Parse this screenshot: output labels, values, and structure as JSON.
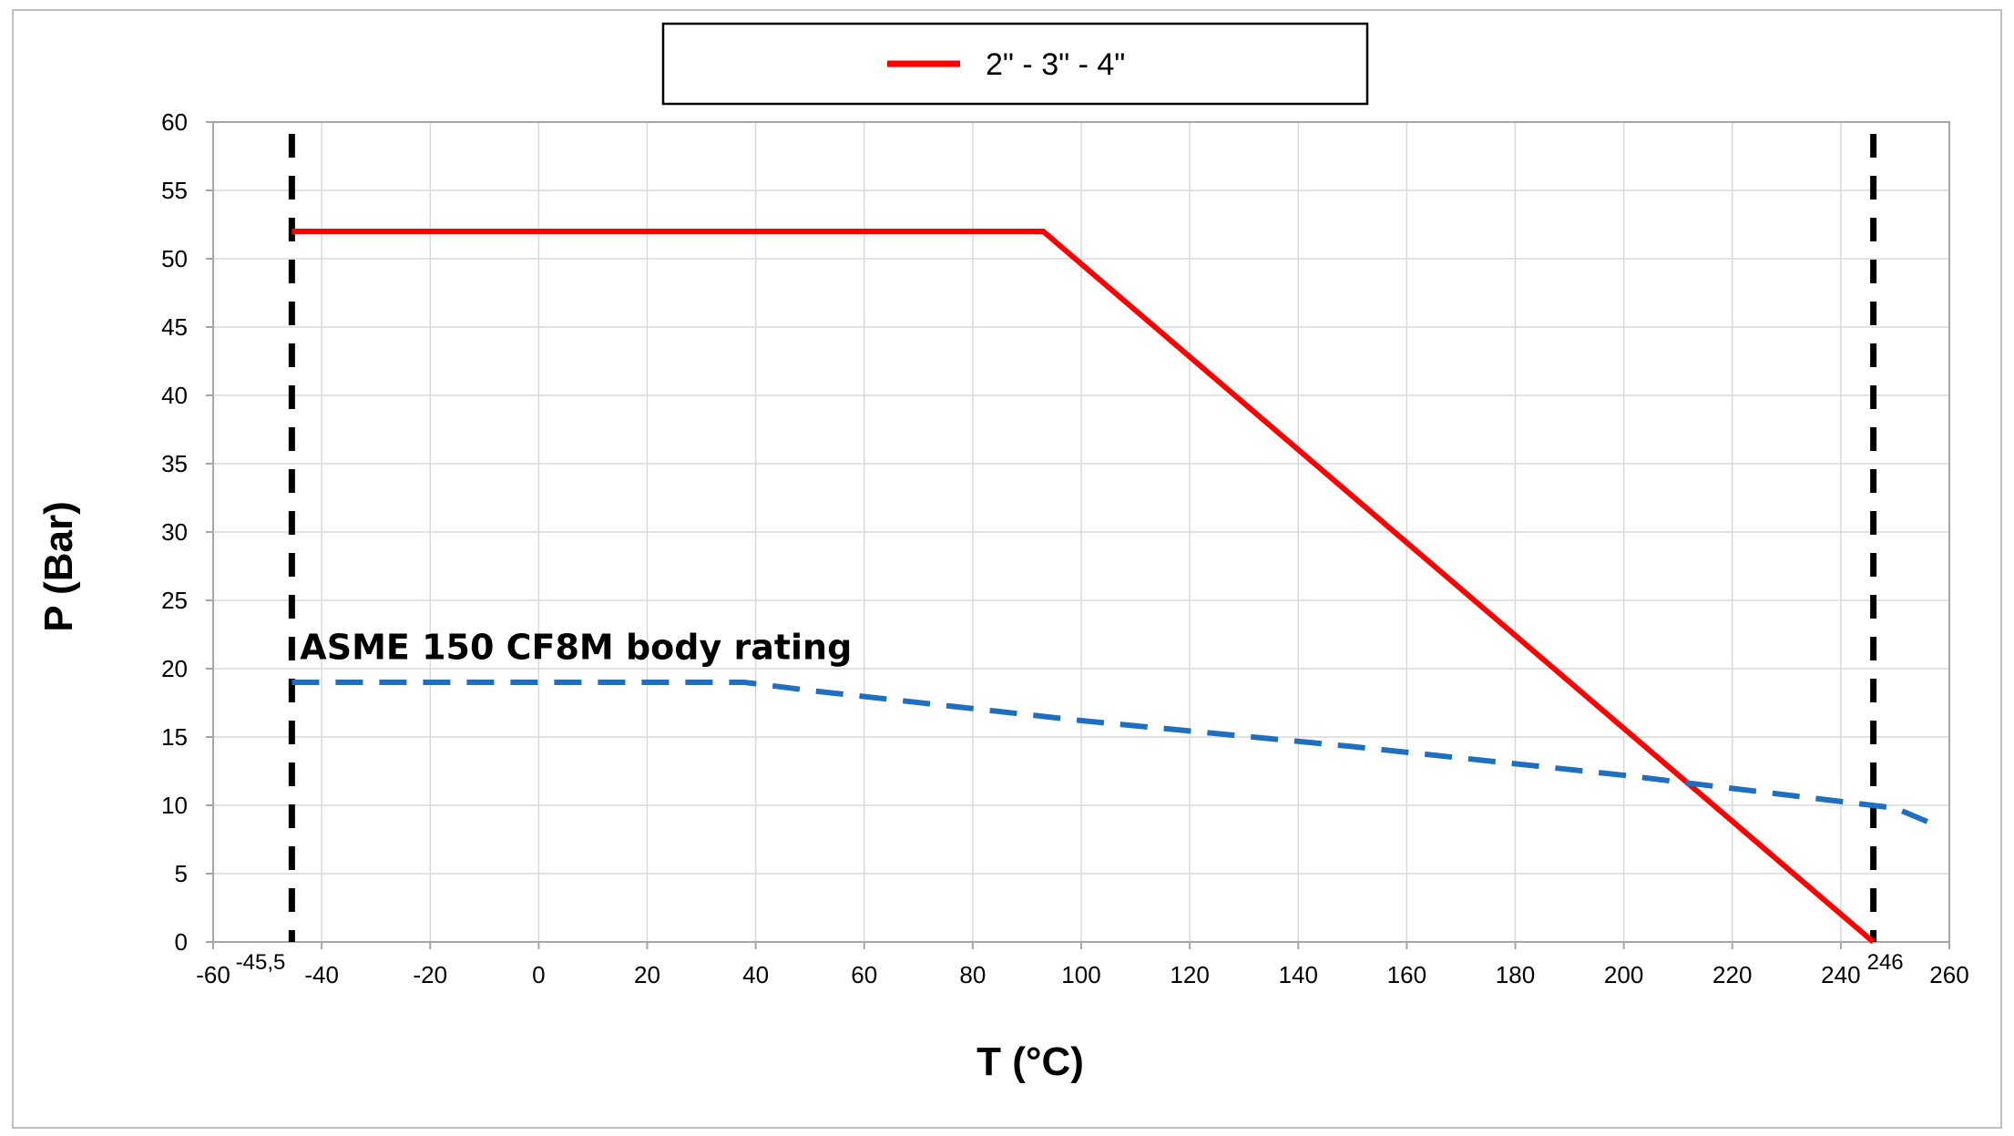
{
  "chart_data": {
    "type": "line",
    "title": "",
    "xlabel": "T (°C)",
    "ylabel": "P (Bar)",
    "xlim": [
      -60,
      260
    ],
    "ylim": [
      0,
      60
    ],
    "x_ticks": [
      -60,
      -40,
      -20,
      0,
      20,
      40,
      60,
      80,
      100,
      120,
      140,
      160,
      180,
      200,
      220,
      240,
      260
    ],
    "y_ticks": [
      0,
      5,
      10,
      15,
      20,
      25,
      30,
      35,
      40,
      45,
      50,
      55,
      60
    ],
    "grid": true,
    "legend_position": "top-center",
    "series": [
      {
        "name": "2\" - 3\" - 4\"",
        "color": "#ff0000",
        "style": "solid",
        "x": [
          -45.5,
          93,
          246
        ],
        "y": [
          52,
          52,
          0
        ]
      },
      {
        "name": "",
        "color": "#1f6fc0",
        "style": "dashed",
        "x": [
          -45.5,
          38,
          50,
          100,
          150,
          200,
          250,
          256
        ],
        "y": [
          19,
          19,
          18.4,
          16.2,
          14.3,
          12.2,
          9.8,
          8.8
        ]
      }
    ],
    "limit_lines": [
      {
        "x": -45.5,
        "label": "-45,5",
        "color": "#000000",
        "style": "dashed"
      },
      {
        "x": 246,
        "label": "246",
        "color": "#000000",
        "style": "dashed"
      }
    ],
    "annotations": [
      {
        "text": "ASME 150 CF8M body rating",
        "x": -44,
        "y": 21.5
      }
    ]
  }
}
